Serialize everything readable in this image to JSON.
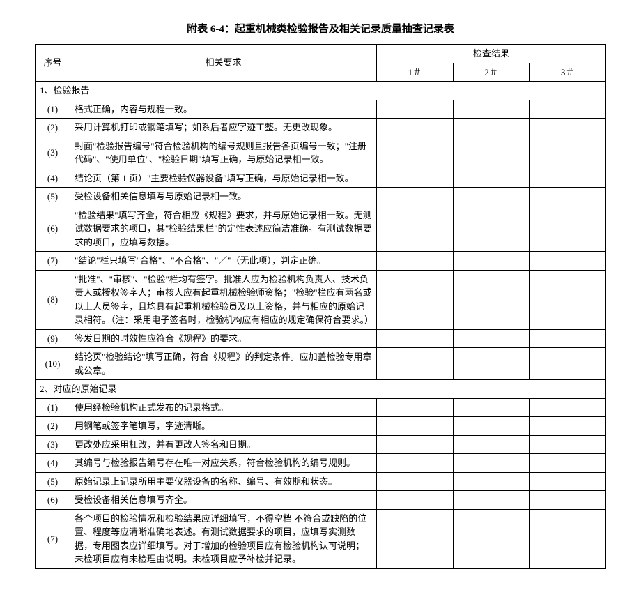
{
  "title": "附表 6-4：起重机械类检验报告及相关记录质量抽查记录表",
  "header": {
    "index_label": "序号",
    "requirement_label": "相关要求",
    "result_label": "检查结果",
    "result_cols": [
      "1＃",
      "2＃",
      "3＃"
    ]
  },
  "section1": {
    "title": "1、检验报告",
    "rows": [
      {
        "idx": "(1)",
        "text": "格式正确，内容与规程一致。"
      },
      {
        "idx": "(2)",
        "text": "采用计算机打印或钢笔填写；如系后者应字迹工整。无更改现象。"
      },
      {
        "idx": "(3)",
        "text": "封面\"检验报告编号\"符合检验机构的编号规则且报告各页编号一致；\"注册代码\"、\"使用单位\"、\"检验日期\"填写正确，与原始记录相一致。"
      },
      {
        "idx": "(4)",
        "text": "结论页（第 1 页）\"主要检验仪器设备\"填写正确，与原始记录相一致。"
      },
      {
        "idx": "(5)",
        "text": "受检设备相关信息填写与原始记录相一致。"
      },
      {
        "idx": "(6)",
        "text": "\"检验结果\"填写齐全，符合相应《规程》要求，并与原始记录相一致。无测试数据要求的项目，其\"检验结果栏\"的定性表述应简洁准确。有测试数据要求的项目，应填写数据。"
      },
      {
        "idx": "(7)",
        "text": "\"结论\"栏只填写\"合格\"、\"不合格\"、\"／\"（无此项），判定正确。"
      },
      {
        "idx": "(8)",
        "text": "\"批准\"、\"审核\"、\"检验\"栏均有签字。批准人应为检验机构负责人、技术负责人或授权签字人；审核人应有起重机械检验师资格；\"检验\"栏应有两名或以上人员签字，且均具有起重机械检验员及以上资格，并与相应的原始记录相符。（注：采用电子签名时，检验机构应有相应的规定确保符合要求。）"
      },
      {
        "idx": "(9)",
        "text": "签发日期的时效性应符合《规程》的要求。"
      },
      {
        "idx": "(10)",
        "text": "结论页\"检验结论\"填写正确，符合《规程》的判定条件。应加盖检验专用章或公章。"
      }
    ]
  },
  "section2": {
    "title": "2、对应的原始记录",
    "rows": [
      {
        "idx": "(1)",
        "text": "使用经检验机构正式发布的记录格式。"
      },
      {
        "idx": "(2)",
        "text": "用钢笔或签字笔填写，字迹清晰。"
      },
      {
        "idx": "(3)",
        "text": "更改处应采用杠改，并有更改人签名和日期。"
      },
      {
        "idx": "(4)",
        "text": "其编号与检验报告编号存在唯一对应关系，符合检验机构的编号规则。"
      },
      {
        "idx": "(5)",
        "text": "原始记录上记录所用主要仪器设备的名称、编号、有效期和状态。"
      },
      {
        "idx": "(6)",
        "text": "受检设备相关信息填写齐全。"
      },
      {
        "idx": "(7)",
        "text": "各个项目的检验情况和检验结果应详细填写，不得空档 不符合或缺陷的位置、程度等应清晰准确地表述。有测试数据要求的项目，应填写实测数据，专用图表应详细填写。对于增加的检验项目应有检验机构认可说明；未检项目应有未检理由说明。未检项目应予补检并记录。"
      }
    ]
  },
  "table_style": {
    "border_color": "#000000",
    "background_color": "#ffffff",
    "text_color": "#000000",
    "title_fontsize": 15,
    "body_fontsize": 13,
    "col_widths": {
      "index": 50,
      "requirement": 440,
      "result": 100
    }
  }
}
